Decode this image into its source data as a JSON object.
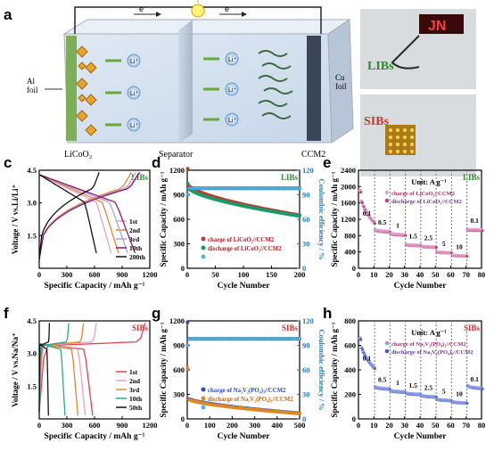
{
  "panels": {
    "a": {
      "letter": "a",
      "electron_left": "e⁻",
      "electron_right": "e⁻",
      "li_ion": "Li⁺",
      "left_collector": "Al",
      "left_collector_2": "foil",
      "right_collector": "Cu",
      "right_collector_2": "foil",
      "cathode": "LiCoO₂",
      "separator": "Separator",
      "anode": "CCM2"
    },
    "b": {
      "letter": "b",
      "top_label": "LIBs",
      "bottom_label": "SIBs",
      "display_text": "JN"
    },
    "c": {
      "letter": "c",
      "tag": "LIBs",
      "ylabel": "Voltage / V vs.Li/Li⁺",
      "xlabel": "Specific Capacity / mAh g⁻¹"
    },
    "d": {
      "letter": "d",
      "tag": "LIBs",
      "ylabel": "Specific Capacity / mAh g⁻¹",
      "y2label": "Coulombic efficiency / %",
      "xlabel": "Cycle Number"
    },
    "e": {
      "letter": "e",
      "tag": "LIBs",
      "ylabel": "Specific Capacity / mAh g⁻¹",
      "xlabel": "Cycle Number",
      "unit": "Unit: A g⁻¹"
    },
    "f": {
      "letter": "f",
      "tag": "SIBs",
      "ylabel": "Voltage / V vs.Na/Na⁺",
      "xlabel": "Specific Capacity / mAh g⁻¹"
    },
    "g": {
      "letter": "g",
      "tag": "SIBs",
      "ylabel": "Specific Capacity / mAh g⁻¹",
      "y2label": "Coulombic efficiency / %",
      "xlabel": "Cycle Number"
    },
    "h": {
      "letter": "h",
      "tag": "SIBs",
      "ylabel": "Specific Capacity / mAh g⁻¹",
      "xlabel": "Cycle Number",
      "unit": "Unit: A g⁻¹"
    }
  },
  "chart_data": [
    {
      "panel": "c",
      "type": "line",
      "xlim": [
        0,
        1200
      ],
      "ylim": [
        0,
        4.5
      ],
      "xticks": [
        0,
        300,
        600,
        900,
        1200
      ],
      "yticks": [
        1.5,
        3.0,
        4.5
      ],
      "series": [
        {
          "name": "1st",
          "color": "#e6a0c8",
          "charge_end": 1080,
          "discharge_end": 780
        },
        {
          "name": "2nd",
          "color": "#e08830",
          "charge_end": 1000,
          "discharge_end": 860
        },
        {
          "name": "3rd",
          "color": "#b0a0e0",
          "charge_end": 1050,
          "discharge_end": 960
        },
        {
          "name": "10th",
          "color": "#8a1a6a",
          "charge_end": 1090,
          "discharge_end": 1040
        },
        {
          "name": "200th",
          "color": "#111111",
          "charge_end": 650,
          "discharge_end": 620
        }
      ]
    },
    {
      "panel": "d",
      "type": "scatter",
      "xlim": [
        0,
        200
      ],
      "ylim": [
        0,
        1200
      ],
      "y2lim": [
        0,
        120
      ],
      "xticks": [
        0,
        50,
        100,
        150,
        200
      ],
      "yticks": [
        0,
        300,
        600,
        900,
        1200
      ],
      "y2ticks": [
        0,
        30,
        60,
        90,
        120
      ],
      "series": [
        {
          "name": "charge of LiCoO₂//CCM2",
          "color": "#c0392b",
          "start": 1220,
          "after": 1040,
          "end": 650
        },
        {
          "name": "discharge of LiCoO₂//CCM2",
          "color": "#1a9a6a",
          "start": 1040,
          "after": 1000,
          "end": 640
        },
        {
          "name": "Coulombic efficiency",
          "color": "#5ab4d8",
          "value": 98
        }
      ]
    },
    {
      "panel": "e",
      "type": "scatter",
      "xlim": [
        0,
        80
      ],
      "ylim": [
        0,
        2400
      ],
      "xticks": [
        0,
        10,
        20,
        30,
        40,
        50,
        60,
        70,
        80
      ],
      "yticks": [
        0,
        400,
        800,
        1200,
        1600,
        2000,
        2400
      ],
      "rates": [
        "0.1",
        "0.5",
        "1",
        "1.5",
        "2.5",
        "5",
        "10",
        "0.1"
      ],
      "segments": [
        {
          "x0": 1,
          "x1": 10,
          "start": 1900,
          "end": 1120
        },
        {
          "x0": 11,
          "x1": 20,
          "start": 940,
          "end": 900
        },
        {
          "x0": 21,
          "x1": 30,
          "start": 850,
          "end": 820
        },
        {
          "x0": 31,
          "x1": 40,
          "start": 580,
          "end": 560
        },
        {
          "x0": 41,
          "x1": 50,
          "start": 540,
          "end": 520
        },
        {
          "x0": 51,
          "x1": 60,
          "start": 400,
          "end": 380
        },
        {
          "x0": 61,
          "x1": 70,
          "start": 320,
          "end": 300
        },
        {
          "x0": 71,
          "x1": 80,
          "start": 950,
          "end": 940
        }
      ],
      "legend": [
        "charge of LiCoO₂//CCM2",
        "discharge of LiCoO₂//CCM2"
      ]
    },
    {
      "panel": "f",
      "type": "line",
      "xlim": [
        0,
        1200
      ],
      "ylim": [
        0,
        4.5
      ],
      "xticks": [
        0,
        300,
        600,
        900,
        1200
      ],
      "yticks": [
        1.5,
        3.0,
        4.5
      ],
      "series": [
        {
          "name": "1st",
          "color": "#e04050",
          "charge_end": 1150,
          "discharge_end": 580
        },
        {
          "name": "2nd",
          "color": "#e6a0c8",
          "charge_end": 620,
          "discharge_end": 500
        },
        {
          "name": "3rd",
          "color": "#e08830",
          "charge_end": 480,
          "discharge_end": 420
        },
        {
          "name": "10th",
          "color": "#2aa890",
          "charge_end": 320,
          "discharge_end": 280
        },
        {
          "name": "50th",
          "color": "#111111",
          "charge_end": 110,
          "discharge_end": 100
        }
      ]
    },
    {
      "panel": "g",
      "type": "scatter",
      "xlim": [
        0,
        500
      ],
      "ylim": [
        0,
        1200
      ],
      "y2lim": [
        0,
        120
      ],
      "xticks": [
        0,
        100,
        200,
        300,
        400,
        500
      ],
      "yticks": [
        0,
        300,
        600,
        900,
        1200
      ],
      "y2ticks": [
        0,
        30,
        60,
        90,
        120
      ],
      "series": [
        {
          "name": "charge of Na₃V₂(PO₄)₃//CCM2",
          "color": "#2a4ad0",
          "start": 1180,
          "after": 260,
          "end": 70
        },
        {
          "name": "discharge of Na₃V₂(PO₄)₃//CCM2",
          "color": "#e08820",
          "start": 620,
          "after": 250,
          "end": 65
        },
        {
          "name": "Coulombic efficiency",
          "color": "#5ab4d8",
          "value": 98
        }
      ]
    },
    {
      "panel": "h",
      "type": "scatter",
      "xlim": [
        0,
        80
      ],
      "ylim": [
        0,
        800
      ],
      "xticks": [
        0,
        10,
        20,
        30,
        40,
        50,
        60,
        70,
        80
      ],
      "yticks": [
        0,
        200,
        400,
        600,
        800
      ],
      "rates": [
        "0.1",
        "0.5",
        "1",
        "1.5",
        "2.5",
        "5",
        "10",
        "0.1"
      ],
      "segments": [
        {
          "x0": 1,
          "x1": 10,
          "start": 660,
          "end": 420
        },
        {
          "x0": 11,
          "x1": 20,
          "start": 260,
          "end": 245
        },
        {
          "x0": 21,
          "x1": 30,
          "start": 230,
          "end": 220
        },
        {
          "x0": 31,
          "x1": 40,
          "start": 210,
          "end": 200
        },
        {
          "x0": 41,
          "x1": 50,
          "start": 190,
          "end": 180
        },
        {
          "x0": 51,
          "x1": 60,
          "start": 160,
          "end": 150
        },
        {
          "x0": 61,
          "x1": 70,
          "start": 140,
          "end": 130
        },
        {
          "x0": 71,
          "x1": 80,
          "start": 270,
          "end": 250
        }
      ],
      "legend": [
        "charge of Na₃V₂(PO₄)₃//CCM2",
        "discharge of Na₃V₂(PO₄)₃//CCM2"
      ]
    }
  ]
}
